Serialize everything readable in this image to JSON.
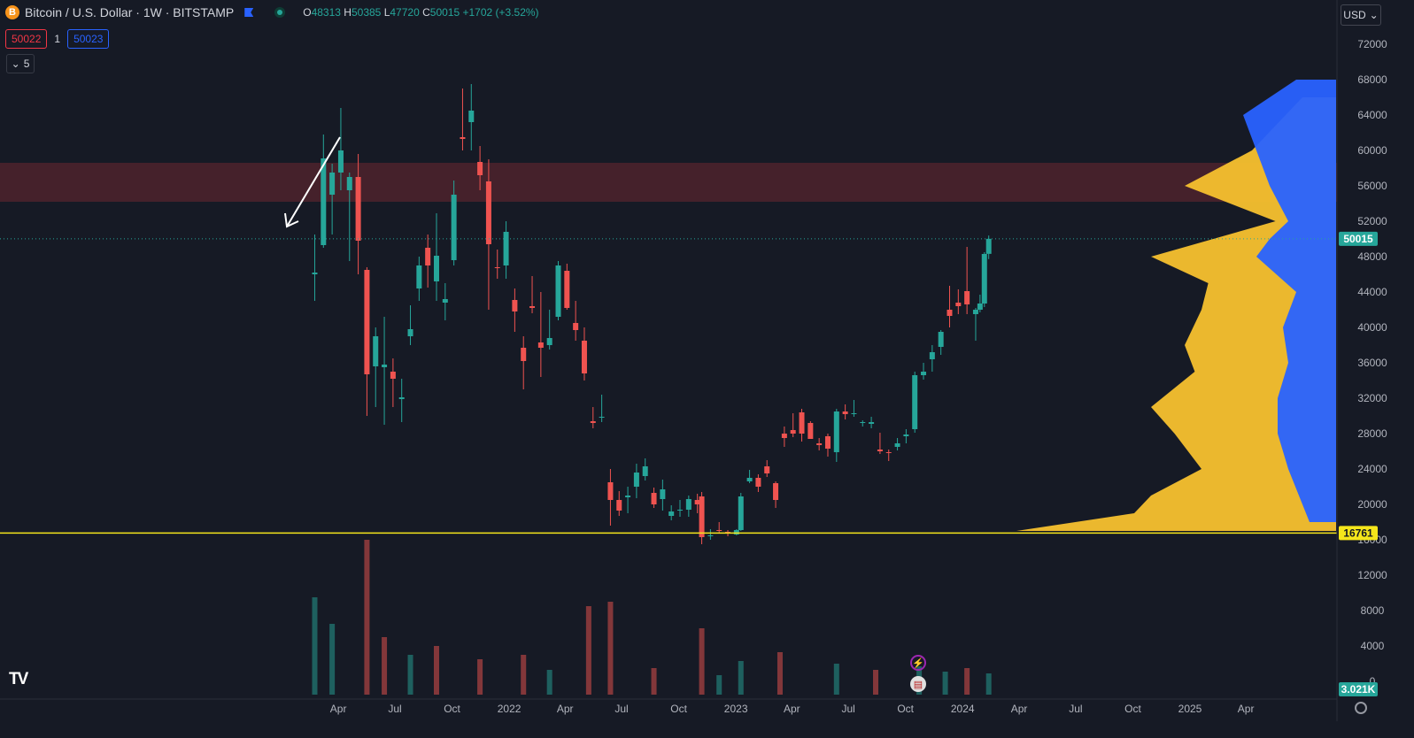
{
  "header": {
    "coin_icon": "B",
    "symbol": "Bitcoin / U.S. Dollar · 1W · BITSTAMP",
    "open_label": "O",
    "open": "48313",
    "high_label": "H",
    "high": "50385",
    "low_label": "L",
    "low": "47720",
    "close_label": "C",
    "close": "50015",
    "change": "+1702 (+3.52%)"
  },
  "trade": {
    "sell": "50022",
    "spread": "1",
    "buy": "50023"
  },
  "indicators_toggle": "5",
  "currency": "USD",
  "logo": "TV",
  "icons": {
    "flag": "flag-icon",
    "gear": "gear-icon",
    "events": [
      "lightning-icon",
      "us-flag-icon"
    ]
  },
  "colors": {
    "up": "#26a69a",
    "down": "#ef5350",
    "zone": "#4a222b",
    "support": "#f5e61b",
    "vp_up": "#2962ff",
    "vp_down": "#f7c12e"
  },
  "chart_data": {
    "type": "candlestick",
    "interval": "1W",
    "y_ticks": [
      0,
      4000,
      8000,
      12000,
      16000,
      20000,
      24000,
      28000,
      32000,
      36000,
      40000,
      44000,
      48000,
      52000,
      56000,
      60000,
      64000,
      68000,
      72000
    ],
    "x_ticks": [
      {
        "label": "Apr",
        "date": "2021-04-01"
      },
      {
        "label": "Jul",
        "date": "2021-07-01"
      },
      {
        "label": "Oct",
        "date": "2021-10-01"
      },
      {
        "label": "2022",
        "date": "2022-01-01"
      },
      {
        "label": "Apr",
        "date": "2022-04-01"
      },
      {
        "label": "Jul",
        "date": "2022-07-01"
      },
      {
        "label": "Oct",
        "date": "2022-10-01"
      },
      {
        "label": "2023",
        "date": "2023-01-01"
      },
      {
        "label": "Apr",
        "date": "2023-04-01"
      },
      {
        "label": "Jul",
        "date": "2023-07-01"
      },
      {
        "label": "Oct",
        "date": "2023-10-01"
      },
      {
        "label": "2024",
        "date": "2024-01-01"
      },
      {
        "label": "Apr",
        "date": "2024-04-01"
      },
      {
        "label": "Jul",
        "date": "2024-07-01"
      },
      {
        "label": "Oct",
        "date": "2024-10-01"
      },
      {
        "label": "2025",
        "date": "2025-01-01"
      },
      {
        "label": "Apr",
        "date": "2025-04-01"
      }
    ],
    "last_price": "50015",
    "support_level": "16761",
    "volume_label": "3.021K",
    "resistance_zone": [
      54200,
      58600
    ],
    "candles": [
      [
        "2021-02-22",
        46000,
        50500,
        43000,
        46200
      ],
      [
        "2021-03-08",
        49300,
        61800,
        49000,
        59100
      ],
      [
        "2021-03-22",
        55000,
        58500,
        50500,
        57500
      ],
      [
        "2021-04-05",
        57500,
        64800,
        55500,
        60000
      ],
      [
        "2021-04-19",
        55500,
        57500,
        47500,
        57000
      ],
      [
        "2021-05-03",
        57000,
        59600,
        46000,
        49800
      ],
      [
        "2021-05-17",
        46500,
        46800,
        30000,
        34700
      ],
      [
        "2021-05-31",
        35600,
        40000,
        31000,
        39000
      ],
      [
        "2021-06-14",
        35500,
        41200,
        29000,
        35800
      ],
      [
        "2021-06-28",
        35000,
        36500,
        31000,
        34200
      ],
      [
        "2021-07-12",
        31900,
        34200,
        29300,
        32100
      ],
      [
        "2021-07-26",
        39000,
        42500,
        38000,
        39800
      ],
      [
        "2021-08-09",
        44400,
        48000,
        43000,
        47000
      ],
      [
        "2021-08-23",
        49000,
        50500,
        44500,
        47000
      ],
      [
        "2021-09-06",
        45200,
        52900,
        43000,
        48100
      ],
      [
        "2021-09-20",
        42800,
        45000,
        40800,
        43200
      ],
      [
        "2021-10-04",
        47600,
        56600,
        47000,
        55000
      ],
      [
        "2021-10-18",
        61500,
        67000,
        60000,
        61300
      ],
      [
        "2021-11-01",
        63200,
        67500,
        60000,
        64500
      ],
      [
        "2021-11-15",
        58700,
        60500,
        55500,
        57200
      ],
      [
        "2021-11-29",
        56500,
        59000,
        42000,
        49400
      ],
      [
        "2021-12-13",
        46800,
        48800,
        45500,
        46700
      ],
      [
        "2021-12-27",
        47000,
        52000,
        45500,
        50800
      ],
      [
        "2022-01-10",
        43100,
        44400,
        39500,
        41800
      ],
      [
        "2022-01-24",
        37700,
        39000,
        33000,
        36200
      ],
      [
        "2022-02-07",
        42400,
        45800,
        41600,
        42200
      ],
      [
        "2022-02-21",
        38300,
        44000,
        34400,
        37700
      ],
      [
        "2022-03-07",
        38000,
        42000,
        37500,
        38800
      ],
      [
        "2022-03-21",
        41200,
        47500,
        40800,
        47000
      ],
      [
        "2022-04-04",
        46400,
        47200,
        42000,
        42200
      ],
      [
        "2022-04-18",
        40500,
        43000,
        38500,
        39700
      ],
      [
        "2022-05-02",
        38500,
        40000,
        34000,
        34800
      ],
      [
        "2022-05-16",
        29400,
        31000,
        28600,
        29200
      ],
      [
        "2022-05-30",
        29800,
        32400,
        29300,
        29900
      ],
      [
        "2022-06-13",
        22500,
        24000,
        17600,
        20500
      ],
      [
        "2022-06-27",
        20500,
        21500,
        18700,
        19300
      ],
      [
        "2022-07-11",
        20800,
        22000,
        19000,
        21000
      ],
      [
        "2022-07-25",
        22000,
        24600,
        20700,
        23600
      ],
      [
        "2022-08-08",
        23200,
        25200,
        22700,
        24300
      ],
      [
        "2022-08-22",
        21300,
        21900,
        19600,
        20000
      ],
      [
        "2022-09-05",
        20600,
        22800,
        19300,
        21700
      ],
      [
        "2022-09-19",
        18700,
        19900,
        18200,
        19200
      ],
      [
        "2022-10-03",
        19300,
        20500,
        18600,
        19400
      ],
      [
        "2022-10-17",
        19400,
        21000,
        18600,
        20600
      ],
      [
        "2022-10-31",
        20500,
        21200,
        19000,
        20000
      ],
      [
        "2022-11-07",
        20900,
        21400,
        15500,
        16300
      ],
      [
        "2022-11-21",
        16400,
        17200,
        16000,
        16500
      ],
      [
        "2022-12-05",
        17100,
        18000,
        16800,
        17000
      ],
      [
        "2022-12-19",
        16900,
        17100,
        16400,
        16700
      ],
      [
        "2023-01-02",
        16600,
        17200,
        16500,
        17100
      ],
      [
        "2023-01-09",
        17100,
        21300,
        17000,
        20900
      ],
      [
        "2023-01-23",
        22600,
        23900,
        22400,
        23000
      ],
      [
        "2023-02-06",
        23000,
        23400,
        21400,
        22000
      ],
      [
        "2023-02-20",
        24300,
        25000,
        23100,
        23500
      ],
      [
        "2023-03-06",
        22400,
        22600,
        19600,
        20500
      ],
      [
        "2023-03-20",
        28000,
        28800,
        26500,
        27500
      ],
      [
        "2023-04-03",
        28400,
        30300,
        27600,
        28000
      ],
      [
        "2023-04-17",
        30400,
        30800,
        27100,
        28000
      ],
      [
        "2023-05-01",
        29200,
        29400,
        27700,
        27400
      ],
      [
        "2023-05-15",
        26900,
        27500,
        26100,
        26700
      ],
      [
        "2023-05-29",
        27700,
        28000,
        25400,
        26300
      ],
      [
        "2023-06-12",
        25900,
        30800,
        24800,
        30500
      ],
      [
        "2023-06-26",
        30500,
        31300,
        29600,
        30200
      ],
      [
        "2023-07-10",
        30200,
        31800,
        29900,
        30300
      ],
      [
        "2023-07-24",
        29200,
        29500,
        28800,
        29300
      ],
      [
        "2023-08-07",
        29100,
        29900,
        28600,
        29300
      ],
      [
        "2023-08-21",
        26200,
        28100,
        25700,
        26000
      ],
      [
        "2023-09-04",
        25900,
        26200,
        24900,
        25800
      ],
      [
        "2023-09-18",
        26500,
        27500,
        26100,
        26900
      ],
      [
        "2023-10-02",
        27700,
        28500,
        26900,
        27900
      ],
      [
        "2023-10-16",
        28500,
        35000,
        28100,
        34600
      ],
      [
        "2023-10-30",
        34600,
        36000,
        34100,
        35000
      ],
      [
        "2023-11-13",
        36400,
        38000,
        35000,
        37200
      ],
      [
        "2023-11-27",
        37800,
        39700,
        36900,
        39500
      ],
      [
        "2023-12-11",
        42000,
        44700,
        40000,
        41300
      ],
      [
        "2023-12-25",
        42800,
        44300,
        41500,
        42400
      ],
      [
        "2024-01-08",
        44100,
        49100,
        41500,
        42600
      ],
      [
        "2024-01-22",
        41500,
        42200,
        38500,
        42000
      ],
      [
        "2024-01-29",
        42000,
        43700,
        41700,
        42700
      ],
      [
        "2024-02-05",
        42700,
        48500,
        42300,
        48300
      ],
      [
        "2024-02-12",
        48313,
        50385,
        47720,
        50015
      ]
    ],
    "volume": [
      [
        "2021-02-22",
        110000,
        1
      ],
      [
        "2021-03-22",
        80000,
        1
      ],
      [
        "2021-05-17",
        175000,
        0
      ],
      [
        "2021-06-14",
        65000,
        0
      ],
      [
        "2021-07-26",
        45000,
        1
      ],
      [
        "2021-09-06",
        55000,
        0
      ],
      [
        "2021-11-15",
        40000,
        0
      ],
      [
        "2022-01-24",
        45000,
        0
      ],
      [
        "2022-03-07",
        28000,
        1
      ],
      [
        "2022-05-09",
        100000,
        0
      ],
      [
        "2022-06-13",
        105000,
        0
      ],
      [
        "2022-08-22",
        30000,
        0
      ],
      [
        "2022-11-07",
        75000,
        0
      ],
      [
        "2022-12-05",
        22000,
        1
      ],
      [
        "2023-01-09",
        38000,
        1
      ],
      [
        "2023-03-13",
        48000,
        0
      ],
      [
        "2023-06-12",
        35000,
        1
      ],
      [
        "2023-08-14",
        28000,
        0
      ],
      [
        "2023-10-23",
        32000,
        1
      ],
      [
        "2023-12-04",
        26000,
        1
      ],
      [
        "2024-01-08",
        30000,
        0
      ],
      [
        "2024-02-12",
        24000,
        1
      ]
    ],
    "volume_profile_up": [
      [
        18000,
        10
      ],
      [
        24000,
        18
      ],
      [
        28000,
        22
      ],
      [
        32000,
        22
      ],
      [
        36000,
        18
      ],
      [
        40000,
        20
      ],
      [
        44000,
        15
      ],
      [
        48000,
        30
      ],
      [
        50000,
        25
      ],
      [
        52000,
        18
      ],
      [
        56000,
        25
      ],
      [
        60000,
        30
      ],
      [
        64000,
        35
      ],
      [
        68000,
        15
      ]
    ],
    "volume_profile_down": [
      [
        17000,
        95
      ],
      [
        19000,
        60
      ],
      [
        21000,
        55
      ],
      [
        24000,
        40
      ],
      [
        28000,
        48
      ],
      [
        31000,
        55
      ],
      [
        35000,
        42
      ],
      [
        38000,
        45
      ],
      [
        42000,
        40
      ],
      [
        45000,
        38
      ],
      [
        48000,
        55
      ],
      [
        52000,
        18
      ],
      [
        56000,
        45
      ],
      [
        60000,
        25
      ],
      [
        66000,
        10
      ]
    ]
  }
}
